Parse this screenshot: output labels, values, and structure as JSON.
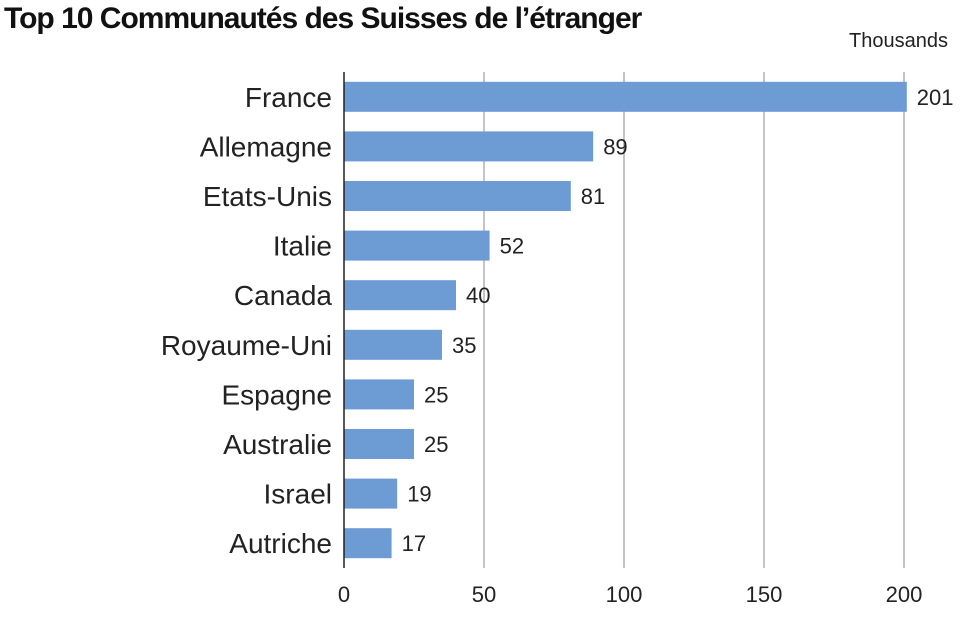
{
  "chart_data": {
    "type": "bar",
    "orientation": "horizontal",
    "title": "Top 10 Communautés des Suisses de l’étranger",
    "unit": "Thousands",
    "categories": [
      "France",
      "Allemagne",
      "Etats-Unis",
      "Italie",
      "Canada",
      "Royaume-Uni",
      "Espagne",
      "Australie",
      "Israel",
      "Autriche"
    ],
    "values": [
      201,
      89,
      81,
      52,
      40,
      35,
      25,
      25,
      19,
      17
    ],
    "value_labels": [
      "201",
      "89",
      "81",
      "52",
      "40",
      "35",
      "25",
      "25",
      "19",
      "17"
    ],
    "xlim": [
      0,
      200
    ],
    "xticks": [
      0,
      50,
      100,
      150,
      200
    ],
    "xtick_labels": [
      "0",
      "50",
      "100",
      "150",
      "200"
    ],
    "grid": "vertical",
    "bar_color": "#6d9bd4",
    "grid_color": "#b0b0b0",
    "axis_color": "#222222"
  }
}
